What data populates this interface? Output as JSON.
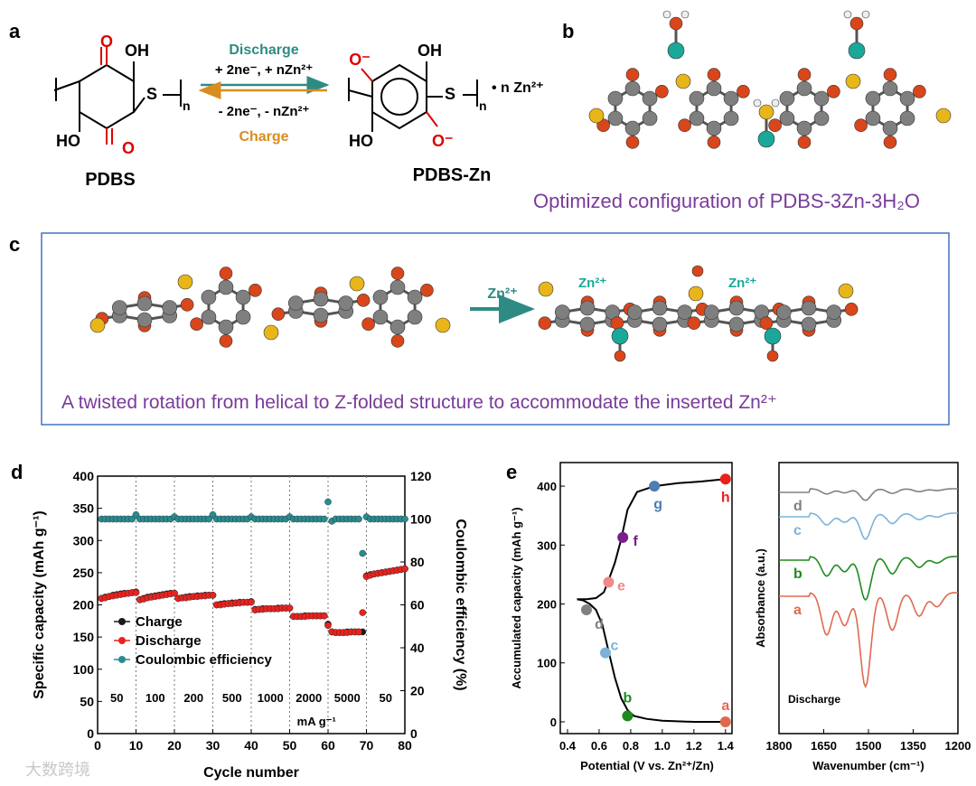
{
  "panels": {
    "a": "a",
    "b": "b",
    "c": "c",
    "d": "d",
    "e": "e"
  },
  "panel_a": {
    "discharge_label": "Discharge",
    "forward_condition": "+ 2ne⁻, + nZn²⁺",
    "reverse_condition": "- 2ne⁻, - nZn²⁺",
    "charge_label": "Charge",
    "left_name": "PDBS",
    "right_name": "PDBS-Zn",
    "left_oh_top": "OH",
    "left_ho_bottom": "HO",
    "left_o_top": "O",
    "left_o_bottom": "O",
    "left_s": "S",
    "right_o_top": "O⁻",
    "right_oh_top": "OH",
    "right_ho_bottom": "HO",
    "right_o_bottom": "O⁻",
    "right_s": "S",
    "subscript_n": "n",
    "zn_suffix": "• n Zn²⁺"
  },
  "panel_b": {
    "caption": "Optimized configuration of PDBS-3Zn-3H₂O"
  },
  "panel_c": {
    "arrow_label": "Zn²⁺",
    "zn_label_1": "Zn²⁺",
    "zn_label_2": "Zn²⁺",
    "caption": "A twisted rotation from helical to Z-folded structure to accommodate the inserted Zn²⁺"
  },
  "colors": {
    "carbon": "#7f7f7f",
    "oxygen": "#d9461b",
    "sulfur": "#e8b619",
    "zinc": "#1aa89a",
    "hydrogen": "#eeeeee",
    "purple_text": "#7a3b9a",
    "teal": "#2e8b84",
    "orange": "#d98c1f",
    "charge_black": "#1a1a1a",
    "discharge_red": "#e8231f",
    "ce_teal": "#2a8c8f"
  },
  "chart_data": [
    {
      "type": "scatter",
      "id": "d",
      "title": "",
      "xlabel": "Cycle number",
      "ylabel": "Specific capacity (mAh g⁻¹)",
      "y2label": "Coulombic efficiency (%)",
      "xlim": [
        0,
        80
      ],
      "ylim": [
        0,
        400
      ],
      "y2lim": [
        0,
        120
      ],
      "xticks": [
        "0",
        "10",
        "20",
        "30",
        "40",
        "50",
        "60",
        "70",
        "80"
      ],
      "yticks": [
        "0",
        "50",
        "100",
        "150",
        "200",
        "250",
        "300",
        "350",
        "400"
      ],
      "y2ticks": [
        "0",
        "20",
        "40",
        "60",
        "80",
        "100",
        "120"
      ],
      "legend": [
        "Charge",
        "Discharge",
        "Coulombic efficiency"
      ],
      "legend_position": "middle-left",
      "rate_labels": [
        "50",
        "100",
        "200",
        "500",
        "1000",
        "2000",
        "5000",
        "50"
      ],
      "rate_unit": "mA g⁻¹",
      "series": [
        {
          "name": "Charge",
          "x": [
            1,
            2,
            3,
            4,
            5,
            6,
            7,
            8,
            9,
            10,
            11,
            12,
            13,
            14,
            15,
            16,
            17,
            18,
            19,
            20,
            21,
            22,
            23,
            24,
            25,
            26,
            27,
            28,
            29,
            30,
            31,
            32,
            33,
            34,
            35,
            36,
            37,
            38,
            39,
            40,
            41,
            42,
            43,
            44,
            45,
            46,
            47,
            48,
            49,
            50,
            51,
            52,
            53,
            54,
            55,
            56,
            57,
            58,
            59,
            60,
            61,
            62,
            63,
            64,
            65,
            66,
            67,
            68,
            69,
            70,
            71,
            72,
            73,
            74,
            75,
            76,
            77,
            78,
            79,
            80
          ],
          "values": [
            210,
            212,
            213,
            215,
            216,
            217,
            218,
            218,
            219,
            220,
            208,
            210,
            212,
            213,
            214,
            215,
            216,
            217,
            218,
            218,
            210,
            211,
            212,
            213,
            213,
            214,
            214,
            215,
            215,
            215,
            200,
            201,
            202,
            202,
            203,
            203,
            204,
            204,
            204,
            205,
            193,
            193,
            194,
            194,
            194,
            194,
            195,
            195,
            195,
            195,
            182,
            182,
            182,
            183,
            183,
            183,
            183,
            183,
            183,
            170,
            158,
            157,
            157,
            157,
            158,
            158,
            158,
            158,
            158,
            245,
            247,
            248,
            249,
            250,
            251,
            252,
            253,
            254,
            255,
            256
          ]
        },
        {
          "name": "Discharge",
          "x": [
            1,
            2,
            3,
            4,
            5,
            6,
            7,
            8,
            9,
            10,
            11,
            12,
            13,
            14,
            15,
            16,
            17,
            18,
            19,
            20,
            21,
            22,
            23,
            24,
            25,
            26,
            27,
            28,
            29,
            30,
            31,
            32,
            33,
            34,
            35,
            36,
            37,
            38,
            39,
            40,
            41,
            42,
            43,
            44,
            45,
            46,
            47,
            48,
            49,
            50,
            51,
            52,
            53,
            54,
            55,
            56,
            57,
            58,
            59,
            60,
            61,
            62,
            63,
            64,
            65,
            66,
            67,
            68,
            69,
            70,
            71,
            72,
            73,
            74,
            75,
            76,
            77,
            78,
            79,
            80
          ],
          "values": [
            210,
            211,
            213,
            214,
            215,
            216,
            217,
            218,
            219,
            219,
            208,
            209,
            211,
            212,
            213,
            214,
            215,
            216,
            217,
            218,
            210,
            211,
            211,
            212,
            213,
            213,
            214,
            214,
            215,
            215,
            200,
            200,
            201,
            202,
            202,
            203,
            203,
            204,
            204,
            204,
            192,
            193,
            193,
            194,
            194,
            194,
            194,
            195,
            195,
            195,
            182,
            182,
            182,
            182,
            183,
            183,
            183,
            183,
            183,
            168,
            158,
            157,
            157,
            157,
            157,
            158,
            158,
            158,
            188,
            244,
            246,
            248,
            249,
            250,
            251,
            252,
            253,
            254,
            255,
            256
          ]
        },
        {
          "name": "Coulombic efficiency",
          "x": [
            1,
            2,
            3,
            4,
            5,
            6,
            7,
            8,
            9,
            10,
            11,
            12,
            13,
            14,
            15,
            16,
            17,
            18,
            19,
            20,
            21,
            22,
            23,
            24,
            25,
            26,
            27,
            28,
            29,
            30,
            31,
            32,
            33,
            34,
            35,
            36,
            37,
            38,
            39,
            40,
            41,
            42,
            43,
            44,
            45,
            46,
            47,
            48,
            49,
            50,
            51,
            52,
            53,
            54,
            55,
            56,
            57,
            58,
            59,
            60,
            61,
            62,
            63,
            64,
            65,
            66,
            67,
            68,
            69,
            70,
            71,
            72,
            73,
            74,
            75,
            76,
            77,
            78,
            79,
            80
          ],
          "values": [
            100,
            100,
            100,
            100,
            100,
            100,
            100,
            100,
            100,
            102,
            100,
            100,
            100,
            100,
            100,
            100,
            100,
            100,
            100,
            101,
            100,
            100,
            100,
            100,
            100,
            100,
            100,
            100,
            100,
            102,
            100,
            100,
            100,
            100,
            100,
            100,
            100,
            100,
            100,
            101,
            100,
            100,
            100,
            100,
            100,
            100,
            100,
            100,
            100,
            101,
            100,
            100,
            100,
            100,
            100,
            100,
            100,
            100,
            100,
            108,
            99,
            100,
            100,
            100,
            100,
            100,
            100,
            100,
            84,
            101,
            100,
            100,
            100,
            100,
            100,
            100,
            100,
            100,
            100,
            100
          ]
        }
      ]
    },
    {
      "type": "line",
      "id": "e-left",
      "title": "",
      "xlabel": "Potential (V vs. Zn²⁺/Zn)",
      "ylabel": "Accumulated capacity (mAh g⁻¹)",
      "xlim": [
        0.4,
        1.4
      ],
      "ylim": [
        -20,
        440
      ],
      "xticks": [
        "0.4",
        "0.6",
        "0.8",
        "1.0",
        "1.2",
        "1.4"
      ],
      "yticks": [
        "0",
        "100",
        "200",
        "300",
        "400"
      ],
      "curve_discharge": {
        "x": [
          1.4,
          1.2,
          1.0,
          0.9,
          0.82,
          0.78,
          0.74,
          0.7,
          0.66,
          0.62,
          0.58,
          0.54,
          0.5,
          0.46
        ],
        "y": [
          0,
          0,
          2,
          5,
          10,
          20,
          40,
          75,
          120,
          165,
          190,
          200,
          206,
          208
        ]
      },
      "curve_charge": {
        "x": [
          0.46,
          0.52,
          0.58,
          0.63,
          0.66,
          0.7,
          0.74,
          0.78,
          0.84,
          0.95,
          1.1,
          1.25,
          1.4
        ],
        "y": [
          208,
          208,
          210,
          220,
          240,
          270,
          310,
          360,
          390,
          400,
          405,
          408,
          412
        ]
      },
      "points": [
        {
          "label": "a",
          "x": 1.4,
          "y": 0,
          "color": "#e06a50"
        },
        {
          "label": "b",
          "x": 0.78,
          "y": 10,
          "color": "#1f8a1f"
        },
        {
          "label": "c",
          "x": 0.64,
          "y": 117,
          "color": "#7bb3d8"
        },
        {
          "label": "d",
          "x": 0.52,
          "y": 190,
          "color": "#808080"
        },
        {
          "label": "e",
          "x": 0.66,
          "y": 237,
          "color": "#f08a8a"
        },
        {
          "label": "f",
          "x": 0.75,
          "y": 313,
          "color": "#7a1f8a"
        },
        {
          "label": "g",
          "x": 0.95,
          "y": 400,
          "color": "#4a7fb0"
        },
        {
          "label": "h",
          "x": 1.4,
          "y": 412,
          "color": "#e82020"
        }
      ]
    },
    {
      "type": "line",
      "id": "e-right",
      "title": "",
      "xlabel": "Wavenumber (cm⁻¹)",
      "ylabel": "Absorbance (a.u.)",
      "xlim": [
        1800,
        1200
      ],
      "xticks": [
        "1800",
        "1650",
        "1500",
        "1350",
        "1200"
      ],
      "annotation": "Discharge",
      "series": [
        {
          "name": "d",
          "color": "#808080"
        },
        {
          "name": "c",
          "color": "#7bb3d8"
        },
        {
          "name": "b",
          "color": "#1f8a1f"
        },
        {
          "name": "a",
          "color": "#e06a50"
        }
      ]
    }
  ],
  "watermark": "大数跨境"
}
